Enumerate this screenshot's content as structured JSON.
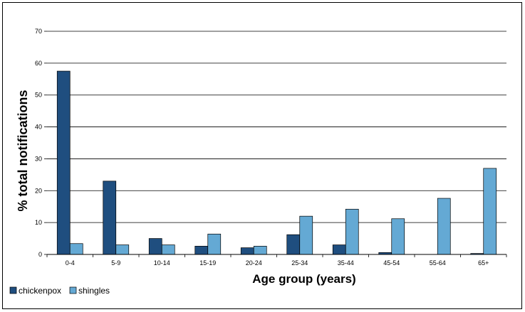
{
  "chart_data": {
    "type": "bar",
    "title": "",
    "xlabel": "Age group (years)",
    "ylabel": "% total notifications",
    "ylim": [
      0,
      70
    ],
    "yticks": [
      0,
      10,
      20,
      30,
      40,
      50,
      60,
      70
    ],
    "grid": true,
    "legend_position": "bottom-left",
    "categories": [
      "0-4",
      "5-9",
      "10-14",
      "15-19",
      "20-24",
      "25-34",
      "35-44",
      "45-54",
      "55-64",
      "65+"
    ],
    "series": [
      {
        "name": "chickenpox",
        "color": "#1f4e7f",
        "values": [
          57.5,
          23.0,
          5.0,
          2.6,
          2.1,
          6.2,
          3.0,
          0.6,
          0.0,
          0.3
        ]
      },
      {
        "name": "shingles",
        "color": "#64a9d4",
        "values": [
          3.4,
          3.0,
          3.0,
          6.4,
          2.6,
          12.0,
          14.2,
          11.2,
          17.6,
          27.0
        ]
      }
    ]
  }
}
